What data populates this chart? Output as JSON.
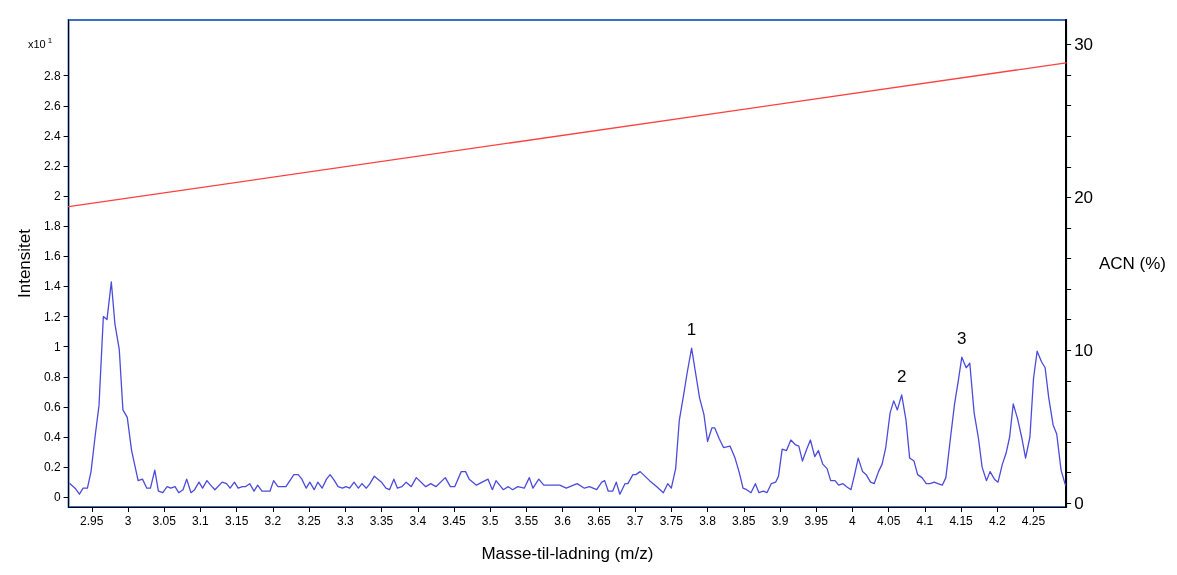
{
  "chart_data": {
    "type": "line",
    "xlabel": "Masse-til-ladning (m/z)",
    "ylabel": "Intensitet",
    "y2label": "ACN (%)",
    "annotations": [
      "x10$^{1}$",
      {
        "text": "1",
        "x": 3.778,
        "y": 0.99
      },
      {
        "text": "2",
        "x": 4.068,
        "y": 0.68
      },
      {
        "text": "3",
        "x": 4.151,
        "y": 0.93
      }
    ],
    "xlim": [
      2.918,
      4.295
    ],
    "xticks": [
      2.95,
      3,
      3.05,
      3.1,
      3.15,
      3.2,
      3.25,
      3.3,
      3.35,
      3.4,
      3.45,
      3.5,
      3.55,
      3.6,
      3.65,
      3.7,
      3.75,
      3.8,
      3.85,
      3.9,
      3.95,
      4,
      4.05,
      4.1,
      4.15,
      4.2,
      4.25
    ],
    "ylim": [
      -0.065,
      3.17
    ],
    "yticks": [
      0,
      0.2,
      0.4,
      0.6,
      0.8,
      1,
      1.2,
      1.4,
      1.6,
      1.8,
      2,
      2.2,
      2.4,
      2.6,
      2.8
    ],
    "y2lim": [
      -0.25,
      31.6
    ],
    "y2ticks": [
      0,
      {
        "value": 2,
        "label": null
      },
      {
        "value": 4,
        "label": null
      },
      {
        "value": 6,
        "label": null
      },
      {
        "value": 8,
        "label": null
      },
      10,
      {
        "value": 12,
        "label": null
      },
      {
        "value": 14,
        "label": null
      },
      {
        "value": 16,
        "label": null
      },
      {
        "value": 18,
        "label": null
      },
      20,
      {
        "value": 22,
        "label": null
      },
      {
        "value": 24,
        "label": null
      },
      {
        "value": 26,
        "label": null
      },
      {
        "value": 28,
        "label": null
      },
      30
    ],
    "grid": false,
    "marker": "none",
    "line_style": "solid",
    "series": [
      {
        "color": "#4b4bdc",
        "x": [
          2.92,
          2.927,
          2.933,
          2.938,
          2.944,
          2.949,
          2.955,
          2.96,
          2.966,
          2.971,
          2.977,
          2.982,
          2.988,
          2.993,
          2.999,
          3.005,
          3.014,
          3.02,
          3.026,
          3.031,
          3.037,
          3.042,
          3.048,
          3.054,
          3.059,
          3.065,
          3.07,
          3.076,
          3.081,
          3.087,
          3.092,
          3.098,
          3.103,
          3.109,
          3.114,
          3.12,
          3.13,
          3.136,
          3.141,
          3.147,
          3.152,
          3.158,
          3.162,
          3.168,
          3.174,
          3.179,
          3.185,
          3.196,
          3.201,
          3.207,
          3.213,
          3.218,
          3.229,
          3.235,
          3.24,
          3.246,
          3.251,
          3.257,
          3.262,
          3.268,
          3.274,
          3.279,
          3.285,
          3.29,
          3.296,
          3.301,
          3.306,
          3.312,
          3.318,
          3.323,
          3.329,
          3.334,
          3.34,
          3.345,
          3.35,
          3.356,
          3.361,
          3.367,
          3.372,
          3.378,
          3.384,
          3.391,
          3.398,
          3.411,
          3.418,
          3.425,
          3.438,
          3.445,
          3.451,
          3.46,
          3.466,
          3.471,
          3.481,
          3.489,
          3.497,
          3.503,
          3.508,
          3.518,
          3.525,
          3.531,
          3.538,
          3.547,
          3.554,
          3.559,
          3.567,
          3.574,
          3.596,
          3.605,
          3.62,
          3.63,
          3.637,
          3.647,
          3.654,
          3.658,
          3.663,
          3.669,
          3.674,
          3.679,
          3.686,
          3.69,
          3.697,
          3.701,
          3.707,
          3.72,
          3.73,
          3.739,
          3.745,
          3.75,
          3.756,
          3.761,
          3.767,
          3.772,
          3.778,
          3.783,
          3.789,
          3.795,
          3.8,
          3.806,
          3.81,
          3.816,
          3.822,
          3.831,
          3.838,
          3.844,
          3.849,
          3.854,
          3.86,
          3.866,
          3.871,
          3.877,
          3.882,
          3.888,
          3.894,
          3.898,
          3.903,
          3.909,
          3.915,
          3.921,
          3.926,
          3.931,
          3.937,
          3.942,
          3.948,
          3.953,
          3.959,
          3.965,
          3.97,
          3.976,
          3.981,
          3.987,
          3.992,
          3.998,
          4.003,
          4.008,
          4.014,
          4.019,
          4.025,
          4.03,
          4.036,
          4.041,
          4.046,
          4.052,
          4.057,
          4.062,
          4.068,
          4.074,
          4.079,
          4.085,
          4.09,
          4.096,
          4.102,
          4.107,
          4.113,
          4.118,
          4.124,
          4.129,
          4.135,
          4.141,
          4.146,
          4.151,
          4.157,
          4.162,
          4.168,
          4.174,
          4.179,
          4.185,
          4.19,
          4.196,
          4.201,
          4.207,
          4.212,
          4.217,
          4.222,
          4.228,
          4.234,
          4.239,
          4.245,
          4.25,
          4.255,
          4.261,
          4.266,
          4.271,
          4.277,
          4.282,
          4.288,
          4.294
        ],
        "values": [
          0.09,
          0.06,
          0.02,
          0.06,
          0.06,
          0.17,
          0.42,
          0.61,
          1.2,
          1.18,
          1.43,
          1.15,
          0.98,
          0.58,
          0.53,
          0.31,
          0.11,
          0.12,
          0.06,
          0.06,
          0.18,
          0.04,
          0.03,
          0.07,
          0.06,
          0.07,
          0.03,
          0.05,
          0.12,
          0.03,
          0.05,
          0.1,
          0.06,
          0.11,
          0.08,
          0.05,
          0.1,
          0.09,
          0.06,
          0.1,
          0.06,
          0.07,
          0.07,
          0.09,
          0.04,
          0.08,
          0.04,
          0.04,
          0.11,
          0.07,
          0.07,
          0.07,
          0.15,
          0.15,
          0.12,
          0.06,
          0.1,
          0.05,
          0.1,
          0.06,
          0.12,
          0.15,
          0.11,
          0.07,
          0.06,
          0.07,
          0.06,
          0.1,
          0.06,
          0.09,
          0.06,
          0.09,
          0.14,
          0.12,
          0.1,
          0.06,
          0.05,
          0.12,
          0.06,
          0.07,
          0.1,
          0.07,
          0.13,
          0.07,
          0.09,
          0.07,
          0.13,
          0.07,
          0.07,
          0.17,
          0.17,
          0.12,
          0.08,
          0.1,
          0.12,
          0.05,
          0.11,
          0.05,
          0.07,
          0.05,
          0.07,
          0.06,
          0.13,
          0.06,
          0.12,
          0.08,
          0.08,
          0.06,
          0.09,
          0.06,
          0.07,
          0.05,
          0.1,
          0.11,
          0.04,
          0.04,
          0.1,
          0.02,
          0.09,
          0.09,
          0.15,
          0.15,
          0.17,
          0.11,
          0.07,
          0.03,
          0.09,
          0.06,
          0.19,
          0.51,
          0.68,
          0.83,
          0.99,
          0.84,
          0.66,
          0.55,
          0.37,
          0.46,
          0.46,
          0.39,
          0.33,
          0.34,
          0.26,
          0.16,
          0.06,
          0.05,
          0.03,
          0.09,
          0.03,
          0.04,
          0.03,
          0.09,
          0.1,
          0.14,
          0.32,
          0.31,
          0.38,
          0.35,
          0.34,
          0.24,
          0.32,
          0.38,
          0.27,
          0.31,
          0.22,
          0.19,
          0.11,
          0.11,
          0.08,
          0.09,
          0.07,
          0.05,
          0.15,
          0.26,
          0.17,
          0.15,
          0.1,
          0.09,
          0.17,
          0.22,
          0.33,
          0.56,
          0.64,
          0.58,
          0.68,
          0.51,
          0.26,
          0.24,
          0.15,
          0.13,
          0.09,
          0.09,
          0.1,
          0.09,
          0.08,
          0.13,
          0.38,
          0.62,
          0.77,
          0.93,
          0.86,
          0.89,
          0.56,
          0.39,
          0.2,
          0.11,
          0.17,
          0.12,
          0.1,
          0.22,
          0.29,
          0.4,
          0.62,
          0.52,
          0.39,
          0.26,
          0.4,
          0.79,
          0.97,
          0.9,
          0.86,
          0.66,
          0.48,
          0.42,
          0.18,
          0.08
        ]
      },
      {
        "color": "#ff4040",
        "axis": "y2",
        "x": [
          2.918,
          4.295
        ],
        "values": [
          19.4,
          28.8
        ]
      }
    ]
  }
}
